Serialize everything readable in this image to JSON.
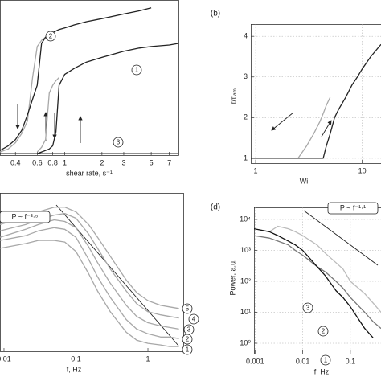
{
  "chart_data": [
    {
      "type": "line",
      "xlabel": "shear rate, s⁻¹",
      "xlog": true,
      "xlim": [
        0.3,
        8.3
      ],
      "xticks": [
        0.4,
        0.6,
        0.8,
        1,
        2,
        3,
        5,
        7
      ],
      "ylim": [
        0,
        1
      ],
      "x": [
        0.3,
        0.35,
        0.4,
        0.45,
        0.5,
        0.55,
        0.6,
        0.65,
        0.7,
        0.75,
        0.8,
        0.85,
        0.9,
        1,
        1.2,
        1.5,
        2,
        3,
        4,
        5,
        7,
        8.3
      ],
      "series": [
        {
          "color": "#a8a8a8",
          "values": [
            0.02,
            0.04,
            0.08,
            0.14,
            0.22,
            0.5,
            0.7,
            0.74,
            0.76,
            null,
            null,
            null,
            null,
            null,
            null,
            null,
            null,
            null,
            null,
            null,
            null,
            null
          ]
        },
        {
          "color": "#222222",
          "values": [
            0.03,
            0.06,
            0.1,
            0.16,
            0.26,
            0.36,
            0.45,
            0.72,
            0.76,
            0.78,
            0.79,
            0.8,
            0.81,
            0.82,
            0.84,
            0.86,
            0.88,
            0.91,
            0.93,
            0.95,
            null,
            null
          ]
        },
        {
          "color": "#a8a8a8",
          "values": [
            null,
            null,
            null,
            null,
            null,
            null,
            0.02,
            0.05,
            0.1,
            0.4,
            0.45,
            0.48,
            0.5,
            null,
            null,
            null,
            null,
            null,
            null,
            null,
            null,
            null
          ]
        },
        {
          "color": "#222222",
          "values": [
            null,
            null,
            null,
            null,
            null,
            null,
            0.01,
            0.02,
            0.03,
            0.04,
            0.06,
            0.15,
            0.45,
            0.52,
            0.56,
            0.6,
            0.63,
            0.67,
            0.69,
            0.7,
            0.71,
            0.72
          ]
        },
        {
          "color": "#222222",
          "values": [
            0.01,
            0.01,
            0.01,
            0.01,
            0.01,
            0.01,
            0.01,
            0.01,
            0.01,
            0.01,
            0.01,
            0.01,
            0.01,
            0.01,
            0.01,
            0.01,
            0.01,
            0.01,
            0.01,
            0.01,
            0.01,
            0.01
          ]
        }
      ],
      "annotations": [
        "2",
        "1",
        "3"
      ]
    },
    {
      "type": "line",
      "panel_label": "(b)",
      "xlabel": "Wi",
      "ylabel": "τ/τₗₐₘ",
      "xlog": true,
      "xlim": [
        0.9,
        15
      ],
      "xticks": [
        1,
        10
      ],
      "ylim": [
        0.88,
        4.3
      ],
      "yticks": [
        1,
        2,
        3,
        4
      ],
      "grid": true,
      "x": [
        0.9,
        1.5,
        2,
        2.5,
        3,
        3.5,
        4,
        4.3,
        4.6,
        5,
        5.5,
        6,
        7,
        8,
        9,
        10,
        12,
        15
      ],
      "series": [
        {
          "color": "#a8a8a8",
          "values": [
            null,
            null,
            null,
            1,
            1.3,
            1.6,
            1.9,
            2.1,
            2.3,
            2.5,
            null,
            null,
            null,
            null,
            null,
            null,
            null,
            null
          ]
        },
        {
          "color": "#222222",
          "values": [
            1,
            1,
            1,
            1,
            1,
            1,
            1,
            1,
            1.3,
            1.6,
            2,
            2.2,
            2.5,
            2.8,
            3,
            3.2,
            3.5,
            3.8
          ]
        }
      ]
    },
    {
      "type": "line",
      "xlabel": "f, Hz",
      "xlog": true,
      "xlim": [
        0.0088,
        3.1
      ],
      "xticks": [
        0.01,
        0.1,
        1
      ],
      "ylim": [
        0,
        1
      ],
      "x": [
        0.0088,
        0.02,
        0.03,
        0.05,
        0.07,
        0.1,
        0.15,
        0.2,
        0.3,
        0.5,
        0.7,
        1,
        1.5,
        2,
        2.7
      ],
      "series": [
        {
          "color": "#a8a8a8",
          "values": [
            0.8,
            0.85,
            0.88,
            0.91,
            0.91,
            0.88,
            0.8,
            0.72,
            0.6,
            0.45,
            0.37,
            0.32,
            0.29,
            0.28,
            0.27
          ]
        },
        {
          "color": "#a8a8a8",
          "values": [
            0.76,
            0.8,
            0.83,
            0.86,
            0.87,
            0.84,
            0.74,
            0.65,
            0.52,
            0.38,
            0.3,
            0.25,
            0.23,
            0.22,
            0.21
          ]
        },
        {
          "color": "#a8a8a8",
          "values": [
            0.72,
            0.77,
            0.8,
            0.83,
            0.82,
            0.78,
            0.66,
            0.56,
            0.43,
            0.29,
            0.22,
            0.18,
            0.16,
            0.15,
            0.14
          ]
        },
        {
          "color": "#a8a8a8",
          "values": [
            0.7,
            0.73,
            0.76,
            0.78,
            0.77,
            0.72,
            0.58,
            0.47,
            0.34,
            0.2,
            0.14,
            0.11,
            0.09,
            0.09,
            0.08
          ]
        },
        {
          "color": "#a8a8a8",
          "values": [
            0.65,
            0.68,
            0.7,
            0.7,
            0.69,
            0.63,
            0.49,
            0.38,
            0.25,
            0.12,
            0.07,
            0.05,
            0.04,
            0.03,
            0.03
          ]
        }
      ],
      "annotations": [
        "P ~ f⁻³·⁵",
        "5",
        "4",
        "3",
        "2",
        "1"
      ]
    },
    {
      "type": "line",
      "panel_label": "(d)",
      "xlabel": "f, Hz",
      "ylabel": "Power, a.u.",
      "xlog": true,
      "ylog": true,
      "xlim": [
        0.00095,
        0.44
      ],
      "xticks": [
        0.001,
        0.01,
        0.1
      ],
      "ylim": [
        0.46,
        24500
      ],
      "yticks": [
        {
          "value": 1,
          "label": "10⁰"
        },
        {
          "value": 10,
          "label": "10¹"
        },
        {
          "value": 100,
          "label": "10²"
        },
        {
          "value": 1000,
          "label": "10³"
        },
        {
          "value": 10000,
          "label": "10⁴"
        }
      ],
      "grid": true,
      "x": [
        0.00095,
        0.002,
        0.003,
        0.005,
        0.007,
        0.01,
        0.02,
        0.03,
        0.05,
        0.07,
        0.1,
        0.2,
        0.3,
        0.44
      ],
      "series": [
        {
          "color": "#bbbbbb",
          "values": [
            null,
            4000,
            6000,
            5000,
            4000,
            3000,
            1500,
            800,
            400,
            250,
            100,
            40,
            20,
            10
          ]
        },
        {
          "color": "#777777",
          "values": [
            3000,
            2500,
            2000,
            1500,
            1000,
            700,
            300,
            200,
            100,
            60,
            30,
            10,
            5,
            3
          ]
        },
        {
          "color": "#111111",
          "values": [
            5000,
            4000,
            3000,
            2000,
            1500,
            1000,
            300,
            150,
            50,
            30,
            15,
            3,
            1.5,
            null
          ]
        }
      ],
      "annotations": [
        "P ~ f⁻¹·¹",
        "3",
        "2",
        "1"
      ]
    }
  ]
}
